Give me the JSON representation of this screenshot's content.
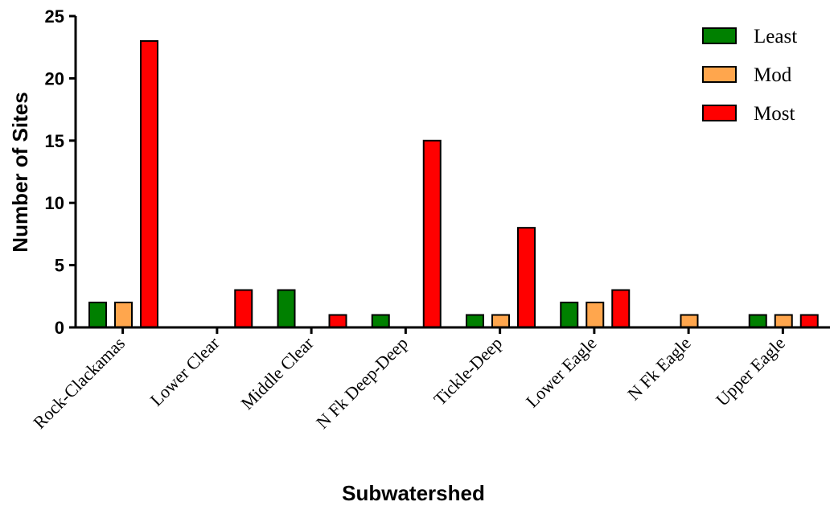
{
  "chart_data": {
    "type": "bar",
    "title": "",
    "xlabel": "Subwatershed",
    "ylabel": "Number of Sites",
    "ylim": [
      0,
      25
    ],
    "yticks": [
      0,
      5,
      10,
      15,
      20,
      25
    ],
    "categories": [
      "Rock-Clackamas",
      "Lower Clear",
      "Middle Clear",
      "N Fk Deep-Deep",
      "Tickle-Deep",
      "Lower Eagle",
      "N Fk Eagle",
      "Upper Eagle"
    ],
    "series": [
      {
        "name": "Least",
        "color": "#008000",
        "values": [
          2,
          0,
          3,
          1,
          1,
          2,
          0,
          1
        ]
      },
      {
        "name": "Mod",
        "color": "#FFA64D",
        "values": [
          2,
          0,
          0,
          0,
          1,
          2,
          1,
          1
        ]
      },
      {
        "name": "Most",
        "color": "#FF0000",
        "values": [
          23,
          3,
          1,
          15,
          8,
          3,
          0,
          1
        ]
      }
    ],
    "legend_position": "top-right",
    "grid": false
  }
}
